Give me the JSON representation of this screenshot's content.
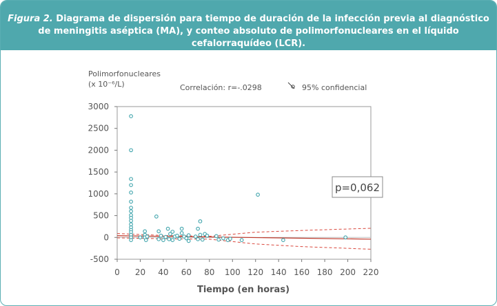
{
  "caption": {
    "label": "Figura 2.",
    "line1": "Diagrama de dispersión para tiempo de duración de la infección previa al diagnóstico",
    "line2": "de meningitis aséptica (MA), y conteo absoluto de polimorfonucleares en el líquido cefalorraquídeo (LCR)."
  },
  "colors": {
    "header_bg": "#4fa8ad",
    "points": "#3fa4ac",
    "fit_line": "#c0392b",
    "ci_line": "#d9463b",
    "axis": "#555555"
  },
  "chart_data": {
    "type": "scatter",
    "title": "",
    "ylabel_line1": "Polimorfonucleares",
    "ylabel_line2": "(x 10⁻⁶/L)",
    "xlabel": "Tiempo (en horas)",
    "correlation": "Correlación: r=-.0298",
    "legend": "95% confidencial",
    "pvalue": "p=0,062",
    "xlim": [
      0,
      220
    ],
    "ylim": [
      -500,
      3000
    ],
    "xticks": [
      0,
      20,
      40,
      60,
      80,
      100,
      120,
      140,
      160,
      180,
      200,
      220
    ],
    "yticks": [
      3000,
      2500,
      2000,
      1500,
      1000,
      500,
      0,
      -500
    ],
    "fit_line": [
      [
        0,
        40
      ],
      [
        220,
        -40
      ]
    ],
    "ci_upper": [
      [
        0,
        90
      ],
      [
        40,
        45
      ],
      [
        80,
        25
      ],
      [
        120,
        120
      ],
      [
        160,
        160
      ],
      [
        220,
        210
      ]
    ],
    "ci_lower": [
      [
        0,
        -10
      ],
      [
        40,
        -30
      ],
      [
        80,
        -40
      ],
      [
        120,
        -150
      ],
      [
        160,
        -210
      ],
      [
        220,
        -270
      ]
    ],
    "points": [
      [
        12,
        2780
      ],
      [
        12,
        2000
      ],
      [
        12,
        1340
      ],
      [
        12,
        1200
      ],
      [
        12,
        1030
      ],
      [
        12,
        820
      ],
      [
        12,
        680
      ],
      [
        12,
        600
      ],
      [
        12,
        510
      ],
      [
        12,
        450
      ],
      [
        12,
        380
      ],
      [
        12,
        300
      ],
      [
        12,
        230
      ],
      [
        12,
        170
      ],
      [
        12,
        120
      ],
      [
        12,
        60
      ],
      [
        12,
        0
      ],
      [
        12,
        -60
      ],
      [
        20,
        0
      ],
      [
        24,
        140
      ],
      [
        24,
        60
      ],
      [
        24,
        0
      ],
      [
        25,
        -60
      ],
      [
        26,
        20
      ],
      [
        34,
        480
      ],
      [
        36,
        140
      ],
      [
        36,
        -40
      ],
      [
        38,
        40
      ],
      [
        40,
        -60
      ],
      [
        42,
        10
      ],
      [
        44,
        200
      ],
      [
        45,
        -40
      ],
      [
        46,
        80
      ],
      [
        48,
        130
      ],
      [
        48,
        -60
      ],
      [
        50,
        20
      ],
      [
        52,
        40
      ],
      [
        54,
        -30
      ],
      [
        56,
        200
      ],
      [
        56,
        100
      ],
      [
        58,
        20
      ],
      [
        60,
        -20
      ],
      [
        62,
        50
      ],
      [
        62,
        -80
      ],
      [
        68,
        20
      ],
      [
        70,
        200
      ],
      [
        70,
        -40
      ],
      [
        72,
        370
      ],
      [
        72,
        60
      ],
      [
        74,
        -50
      ],
      [
        76,
        80
      ],
      [
        78,
        40
      ],
      [
        86,
        30
      ],
      [
        88,
        -50
      ],
      [
        92,
        -20
      ],
      [
        96,
        -60
      ],
      [
        98,
        -30
      ],
      [
        108,
        -60
      ],
      [
        122,
        980
      ],
      [
        144,
        -60
      ],
      [
        198,
        0
      ]
    ]
  }
}
